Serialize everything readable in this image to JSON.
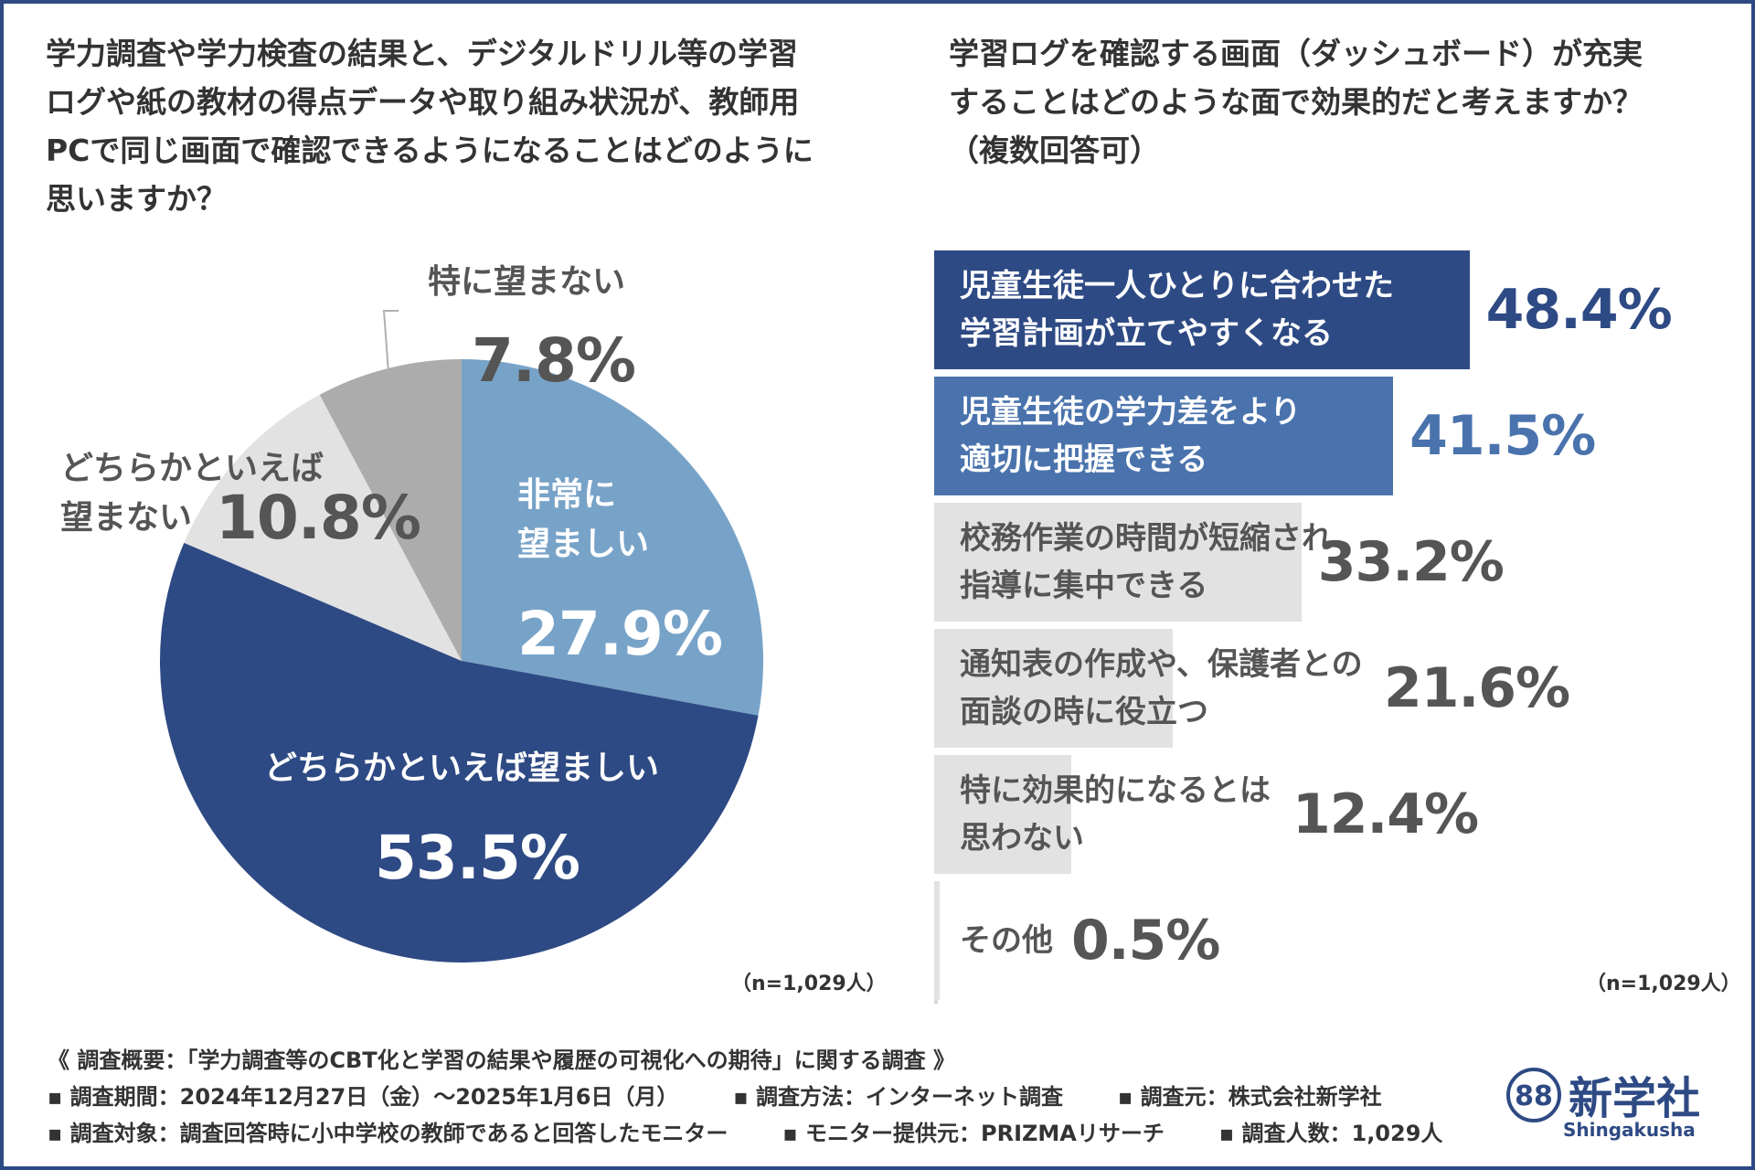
{
  "colors": {
    "frame": "#2e4a84",
    "dark_navy": "#2e4a84",
    "mid_blue": "#4a73ad",
    "light_blue": "#78a3c8",
    "light_gray": "#e2e2e2",
    "mid_gray": "#acacac"
  },
  "left_panel": {
    "question": "学力調査や学力検査の結果と、デジタルドリル等の学習\nログや紙の教材の得点データや取り組み状況が、教師用\nPCで同じ画面で確認できるようになることはどのように\n思いますか？",
    "n_note": "（n=1,029人）"
  },
  "right_panel": {
    "question": "学習ログを確認する画面（ダッシュボード）が充実\nすることはどのような面で効果的だと考えますか？\n（複数回答可）",
    "n_note": "（n=1,029人）"
  },
  "chart_data": [
    {
      "type": "pie",
      "title": "",
      "slices": [
        {
          "label": "非常に\n望ましい",
          "value": 27.9,
          "value_label": "27.9%",
          "color": "#78a3c8"
        },
        {
          "label": "どちらかといえば望ましい",
          "value": 53.5,
          "value_label": "53.5%",
          "color": "#2e4a84"
        },
        {
          "label": "どちらかといえば\n望まない",
          "value": 10.8,
          "value_label": "10.8%",
          "color": "#e2e2e2"
        },
        {
          "label": "特に望まない",
          "value": 7.8,
          "value_label": "7.8%",
          "color": "#acacac"
        }
      ]
    },
    {
      "type": "bar",
      "orientation": "horizontal",
      "title": "",
      "xlim": [
        0,
        60
      ],
      "categories": [
        "児童生徒一人ひとりに合わせた\n学習計画が立てやすくなる",
        "児童生徒の学力差をより\n適切に把握できる",
        "校務作業の時間が短縮され\n指導に集中できる",
        "通知表の作成や、保護者との\n面談の時に役立つ",
        "特に効果的になるとは\n思わない",
        "その他"
      ],
      "values": [
        48.4,
        41.5,
        33.2,
        21.6,
        12.4,
        0.5
      ],
      "value_labels": [
        "48.4%",
        "41.5%",
        "33.2%",
        "21.6%",
        "12.4%",
        "0.5%"
      ],
      "bar_colors": [
        "#2e4a84",
        "#4a73ad",
        "#e2e2e2",
        "#e2e2e2",
        "#e2e2e2",
        "#e2e2e2"
      ],
      "label_colors": [
        "#ffffff",
        "#ffffff",
        "#555555",
        "#555555",
        "#555555",
        "#555555"
      ],
      "pct_colors": [
        "#2e4a84",
        "#4a73ad",
        "#555555",
        "#555555",
        "#555555",
        "#555555"
      ]
    }
  ],
  "footer": {
    "line1": "《 調査概要：「学力調査等のCBT化と学習の結果や履歴の可視化への期待」に関する調査 》",
    "period": "▪ 調査期間：2024年12月27日（金）～2025年1月6日（月）",
    "method": "▪ 調査方法：インターネット調査",
    "source": "▪ 調査元：株式会社新学社",
    "target": "▪ 調査対象：調査回答時に小中学校の教師であると回答したモニター",
    "provider": "▪ モニター提供元：PRIZMAリサーチ",
    "count": "▪ 調査人数：1,029人"
  },
  "logo": {
    "name": "新学社",
    "sub": "Shingakusha",
    "mark_text": "88"
  }
}
